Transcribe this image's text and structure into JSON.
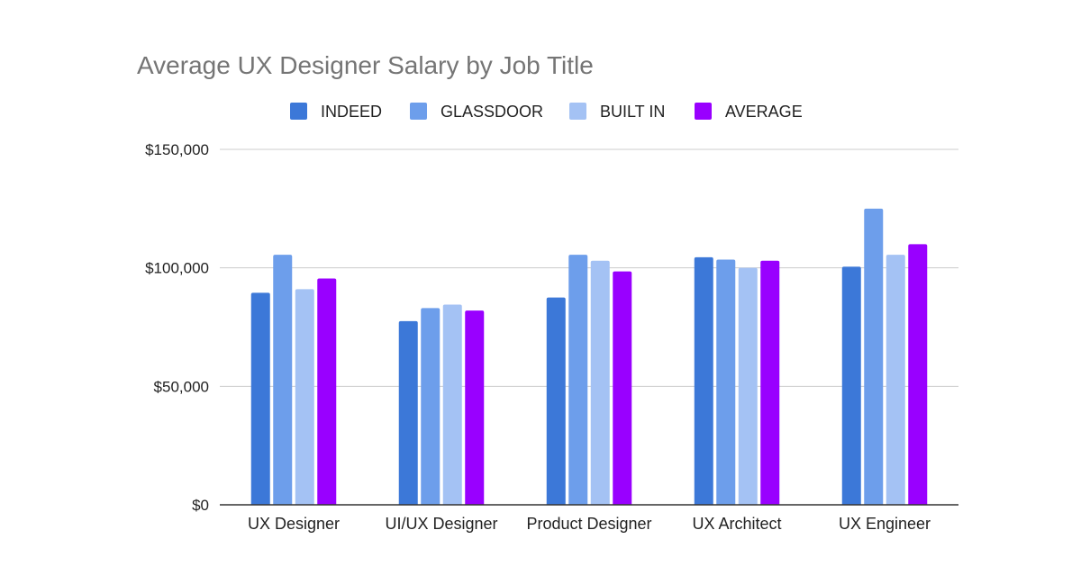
{
  "chart_data": {
    "type": "bar",
    "title": "Average UX Designer Salary by Job Title",
    "xlabel": "",
    "ylabel": "",
    "categories": [
      "UX Designer",
      "UI/UX Designer",
      "Product Designer",
      "UX Architect",
      "UX Engineer"
    ],
    "series": [
      {
        "name": "INDEED",
        "color": "#3c78d8",
        "values": [
          89500,
          77500,
          87500,
          104500,
          100500
        ]
      },
      {
        "name": "GLASSDOOR",
        "color": "#6d9eeb",
        "values": [
          105500,
          83000,
          105500,
          103500,
          125000
        ]
      },
      {
        "name": "BUILT IN",
        "color": "#a4c2f4",
        "values": [
          91000,
          84500,
          103000,
          100000,
          105500
        ]
      },
      {
        "name": "AVERAGE",
        "color": "#9900ff",
        "values": [
          95500,
          82000,
          98500,
          103000,
          110000
        ]
      }
    ],
    "ylim": [
      0,
      150000
    ],
    "yticks": [
      0,
      50000,
      100000,
      150000
    ],
    "ytick_labels": [
      "$0",
      "$50,000",
      "$100,000",
      "$150,000"
    ],
    "grid": true,
    "legend_position": "top"
  }
}
